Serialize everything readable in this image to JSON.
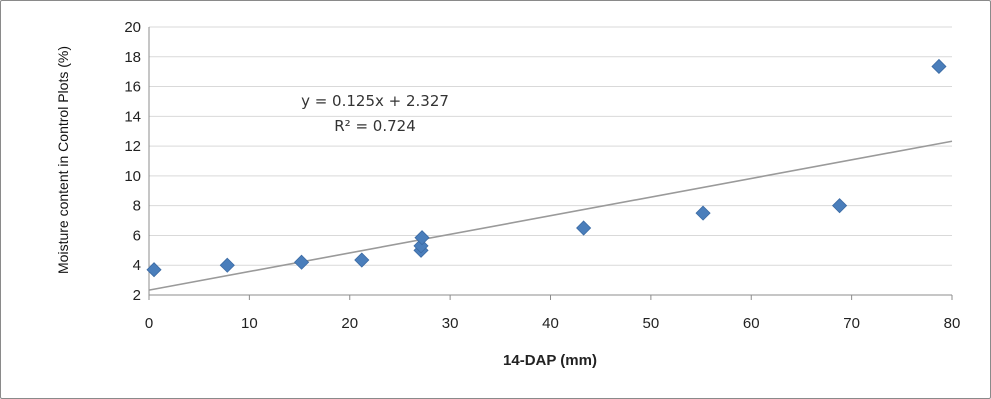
{
  "chart_data": {
    "type": "scatter",
    "xlabel": "14-DAP (mm)",
    "ylabel": "Moisture content in Control Plots (%)",
    "xlim": [
      0,
      80
    ],
    "ylim": [
      2,
      20
    ],
    "xticks": [
      0,
      10,
      20,
      30,
      40,
      50,
      60,
      70,
      80
    ],
    "yticks": [
      2,
      4,
      6,
      8,
      10,
      12,
      14,
      16,
      18,
      20
    ],
    "grid": true,
    "marker_color": "#4a7ebb",
    "trendline_color": "#9a9a9a",
    "points": [
      {
        "x": 0.5,
        "y": 3.7
      },
      {
        "x": 7.8,
        "y": 4.0
      },
      {
        "x": 15.2,
        "y": 4.2
      },
      {
        "x": 21.2,
        "y": 4.35
      },
      {
        "x": 27.1,
        "y": 5.0
      },
      {
        "x": 27.1,
        "y": 5.3
      },
      {
        "x": 27.2,
        "y": 5.85
      },
      {
        "x": 43.3,
        "y": 6.5
      },
      {
        "x": 55.2,
        "y": 7.5
      },
      {
        "x": 68.8,
        "y": 8.0
      },
      {
        "x": 78.7,
        "y": 17.35
      }
    ],
    "trendline": {
      "slope": 0.125,
      "intercept": 2.327,
      "equation": "y = 0.125x + 2.327",
      "r2": "R² = 0.724"
    }
  }
}
